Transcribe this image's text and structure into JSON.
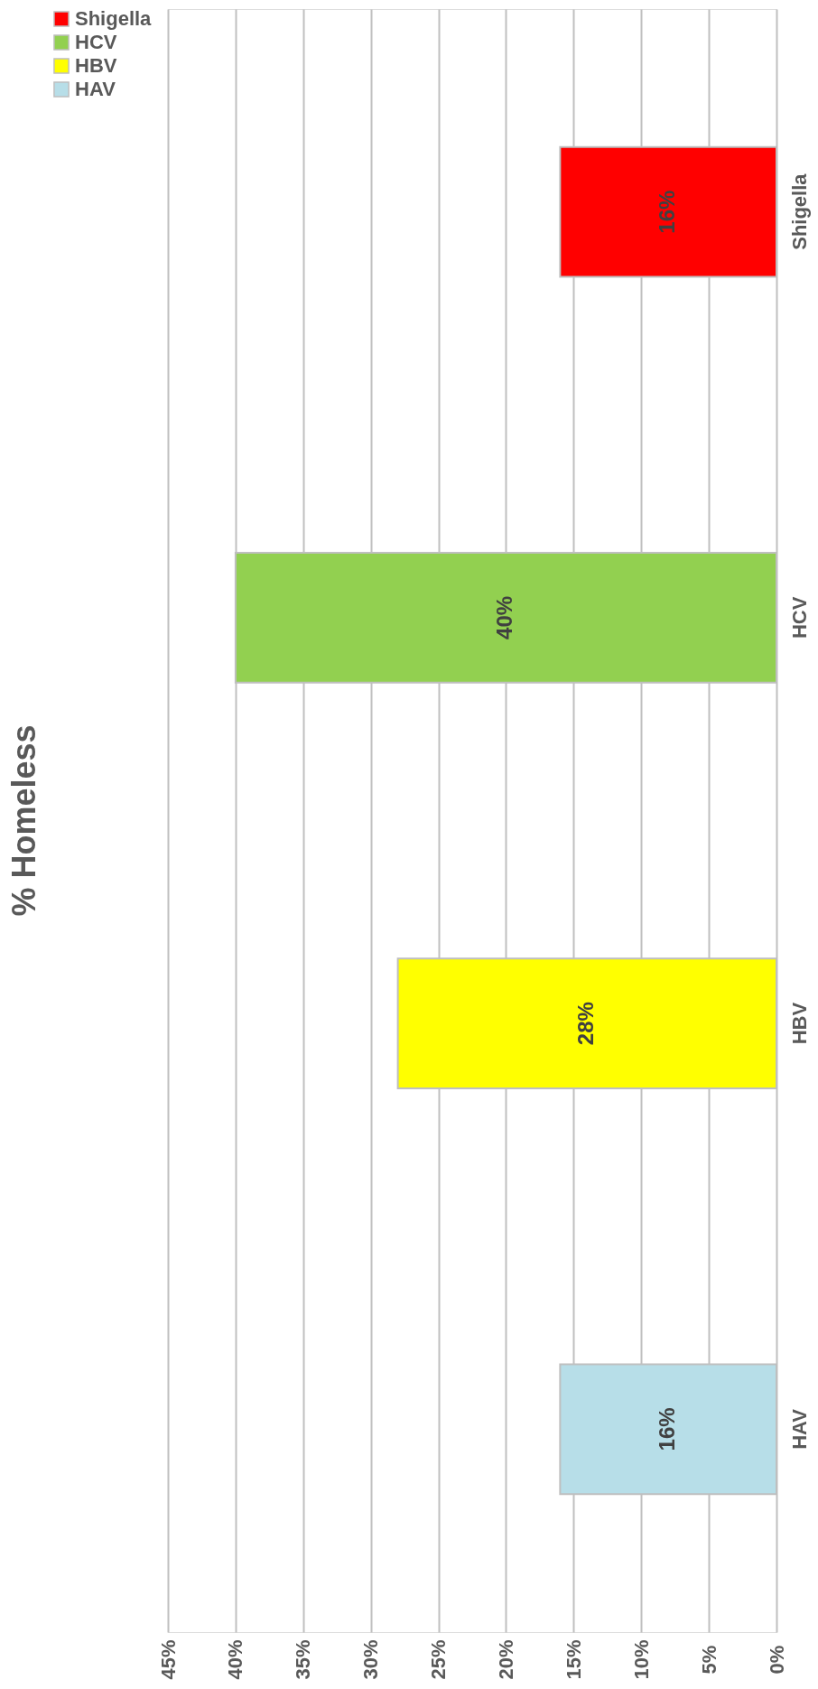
{
  "chart_data": {
    "type": "bar",
    "orientation": "horizontal",
    "title": "% Homeless",
    "categories": [
      "Shigella",
      "HCV",
      "HBV",
      "HAV"
    ],
    "series": [
      {
        "name": "Shigella",
        "color": "#ff0000",
        "values": [
          16,
          null,
          null,
          null
        ]
      },
      {
        "name": "HCV",
        "color": "#92d050",
        "values": [
          null,
          40,
          null,
          null
        ]
      },
      {
        "name": "HBV",
        "color": "#ffff00",
        "values": [
          null,
          null,
          28,
          null
        ]
      },
      {
        "name": "HAV",
        "color": "#b7dee8",
        "values": [
          null,
          null,
          null,
          16
        ]
      }
    ],
    "value_labels": [
      "16%",
      "40%",
      "28%",
      "16%"
    ],
    "xlim": [
      45,
      0
    ],
    "xticks": [
      {
        "value": 0,
        "label": "0%"
      },
      {
        "value": 5,
        "label": "5%"
      },
      {
        "value": 10,
        "label": "10%"
      },
      {
        "value": 15,
        "label": "15%"
      },
      {
        "value": 20,
        "label": "20%"
      },
      {
        "value": 25,
        "label": "25%"
      },
      {
        "value": 30,
        "label": "30%"
      },
      {
        "value": 35,
        "label": "35%"
      },
      {
        "value": 40,
        "label": "40%"
      },
      {
        "value": 45,
        "label": "45%"
      }
    ],
    "grid": "x",
    "legend": "left"
  }
}
